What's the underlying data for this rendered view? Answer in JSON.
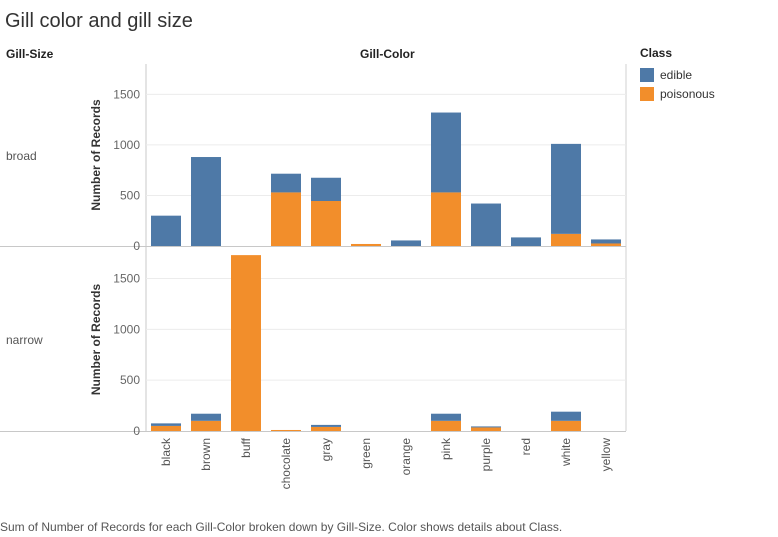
{
  "title": "Gill color and gill size",
  "headers": {
    "row_dim": "Gill-Size",
    "col_dim": "Gill-Color"
  },
  "legend": {
    "title": "Class",
    "items": [
      {
        "label": "edible",
        "color": "#4e79a7"
      },
      {
        "label": "poisonous",
        "color": "#f28e2b"
      }
    ]
  },
  "caption": "Sum of Number of Records for each Gill-Color broken down by Gill-Size.  Color shows details about Class.",
  "chart_data": {
    "type": "bar",
    "stacked": true,
    "categories": [
      "black",
      "brown",
      "buff",
      "chocolate",
      "gray",
      "green",
      "orange",
      "pink",
      "purple",
      "red",
      "white",
      "yellow"
    ],
    "ylabel": "Number of Records",
    "xlabel": "Gill-Color",
    "legend_position": "top-right",
    "panels": [
      {
        "label": "broad",
        "ylim": [
          0,
          1800
        ],
        "yticks": [
          0,
          500,
          1000,
          1500
        ],
        "series": [
          {
            "name": "poisonous",
            "values": [
              0,
              0,
              0,
              530,
              445,
              20,
              0,
              530,
              0,
              0,
              120,
              25
            ]
          },
          {
            "name": "edible",
            "values": [
              300,
              880,
              0,
              185,
              230,
              0,
              55,
              790,
              420,
              85,
              890,
              40
            ]
          }
        ]
      },
      {
        "label": "narrow",
        "ylim": [
          0,
          1800
        ],
        "yticks": [
          0,
          500,
          1000,
          1500
        ],
        "series": [
          {
            "name": "poisonous",
            "values": [
              50,
              100,
              1730,
              10,
              40,
              0,
              0,
              100,
              35,
              0,
              100,
              0
            ]
          },
          {
            "name": "edible",
            "values": [
              25,
              70,
              0,
              0,
              20,
              0,
              0,
              70,
              10,
              0,
              90,
              0
            ]
          }
        ]
      }
    ]
  }
}
